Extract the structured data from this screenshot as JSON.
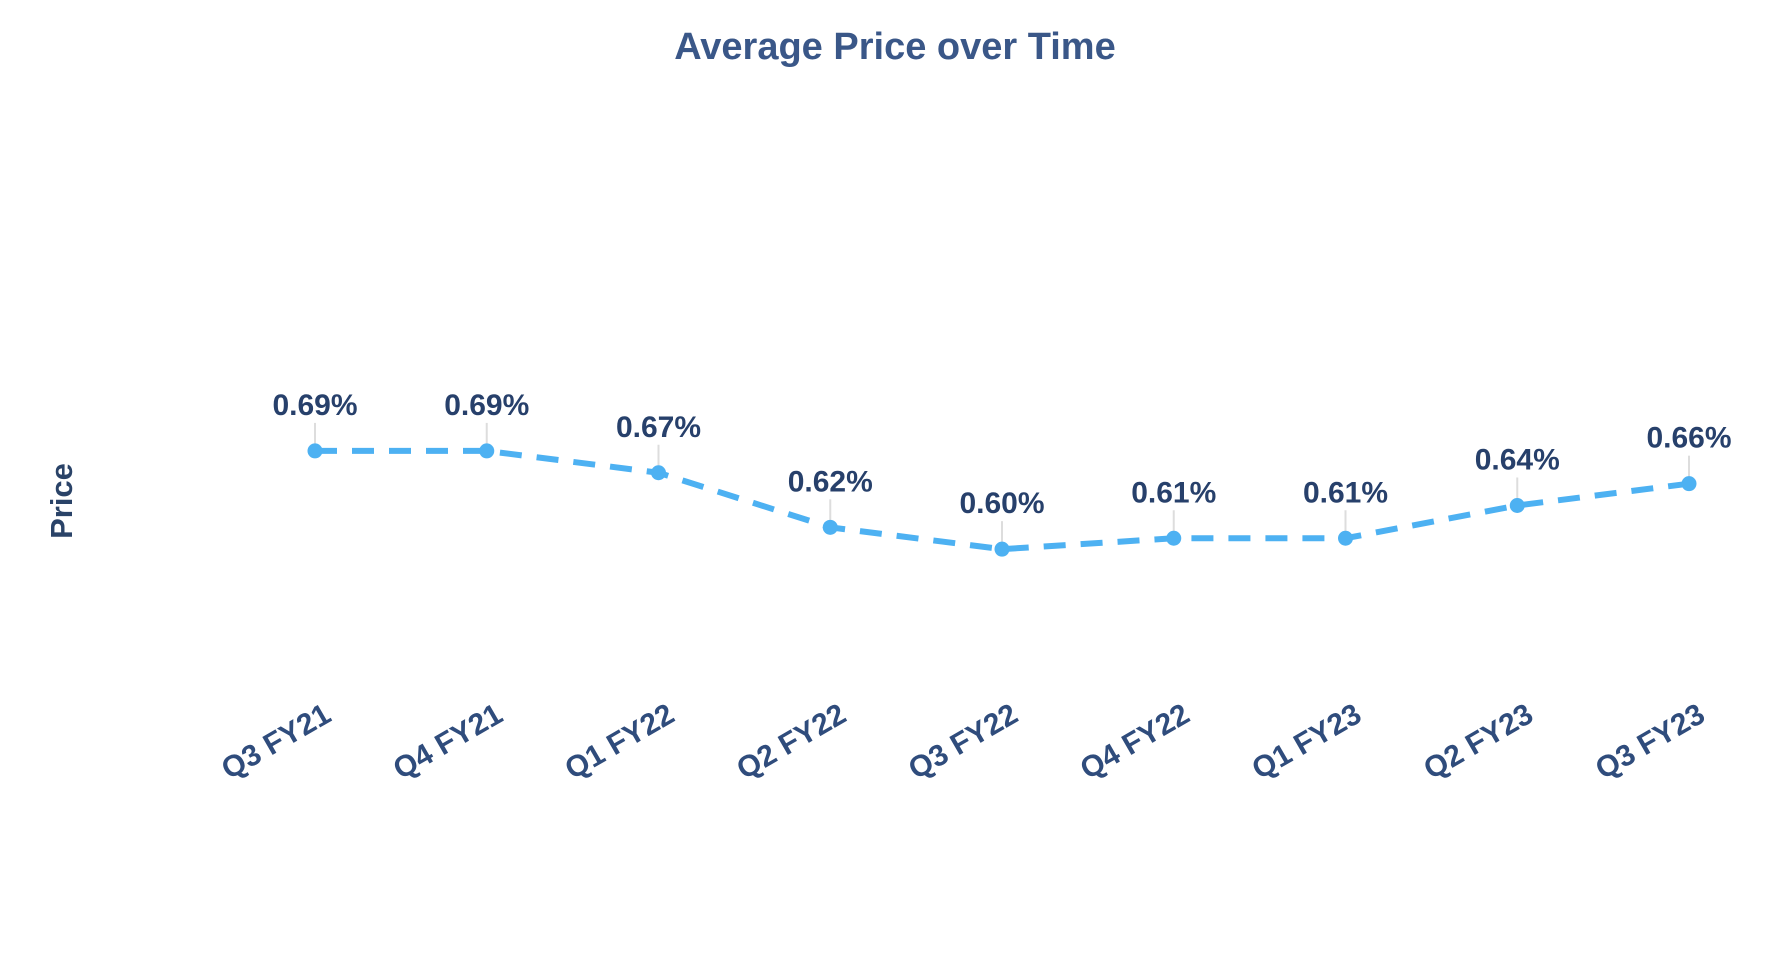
{
  "chart_data": {
    "type": "line",
    "title": "Average Price over Time",
    "ylabel": "Price",
    "xlabel": "",
    "categories": [
      "Q3 FY21",
      "Q4 FY21",
      "Q1 FY22",
      "Q2 FY22",
      "Q3 FY22",
      "Q4 FY22",
      "Q1 FY23",
      "Q2 FY23",
      "Q3 FY23"
    ],
    "values": [
      0.69,
      0.69,
      0.67,
      0.62,
      0.6,
      0.61,
      0.61,
      0.64,
      0.66
    ],
    "data_labels": [
      "0.69%",
      "0.69%",
      "0.67%",
      "0.62%",
      "0.60%",
      "0.61%",
      "0.61%",
      "0.64%",
      "0.66%"
    ],
    "unit": "%",
    "ylim": [
      0.58,
      0.7
    ],
    "grid": false,
    "legend": "none",
    "line_style": "dashed",
    "marker": "circle",
    "colors": {
      "line": "#4DB1F2",
      "marker": "#4DB1F2",
      "data_label": "#27406B",
      "axis_label": "#2F4C7C",
      "title": "#3A5788",
      "connector": "#DDDDDD",
      "background": "#FFFFFF"
    }
  }
}
